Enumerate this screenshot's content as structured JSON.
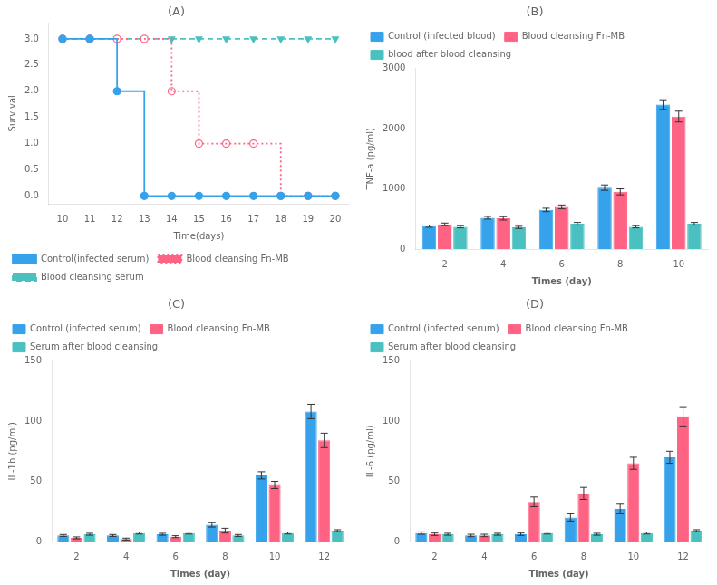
{
  "chart_data": [
    {
      "type": "step",
      "title": "(A)",
      "xlabel": "Time(days)",
      "ylabel": "Survival",
      "xlim": [
        9.5,
        20.5
      ],
      "ylim": [
        -0.15,
        3.3
      ],
      "xticks": [
        10,
        11,
        12,
        13,
        14,
        15,
        16,
        17,
        18,
        19,
        20
      ],
      "yticks": [
        {
          "value": 0,
          "label": "0.0"
        },
        0.5,
        {
          "value": 1,
          "label": "1.0"
        },
        1.5,
        {
          "value": 2,
          "label": "2.0"
        },
        2.5,
        {
          "value": 3,
          "label": "3.0"
        }
      ],
      "grid": false,
      "legend": "lower left",
      "series": [
        {
          "name": "Control(infected serum)",
          "line_style": "solid",
          "marker": "circle",
          "x": [
            10,
            11,
            12,
            12,
            13,
            13,
            20
          ],
          "values": [
            3,
            3,
            3,
            2,
            2,
            0,
            0
          ],
          "marker_x": [
            10,
            11,
            12,
            13,
            14,
            15,
            16,
            17,
            18,
            19,
            20
          ],
          "marker_values": [
            3,
            3,
            2,
            0,
            0,
            0,
            0,
            0,
            0,
            0,
            0
          ]
        },
        {
          "name": "Blood cleansing Fn-MB",
          "line_style": "dotted",
          "marker": "open_circle",
          "x": [
            10,
            11,
            12,
            13,
            14,
            14,
            15,
            15,
            16,
            17,
            18,
            18,
            20
          ],
          "values": [
            3,
            3,
            3,
            3,
            3,
            2,
            2,
            1,
            1,
            1,
            1,
            0,
            0
          ],
          "marker_x": [
            10,
            11,
            12,
            13,
            14,
            15,
            16,
            17,
            18,
            19,
            20
          ],
          "marker_values": [
            3,
            3,
            3,
            3,
            2,
            1,
            1,
            1,
            0,
            0,
            0
          ]
        },
        {
          "name": "Blood cleansing serum",
          "line_style": "dashed",
          "marker": "triangle_down",
          "x": [
            10,
            11,
            12,
            13,
            14,
            15,
            16,
            17,
            18,
            19,
            20
          ],
          "values": [
            3,
            3,
            3,
            3,
            3,
            3,
            3,
            3,
            3,
            3,
            3
          ],
          "marker_x": [
            10,
            11,
            12,
            13,
            14,
            15,
            16,
            17,
            18,
            19,
            20
          ],
          "marker_values": [
            3,
            3,
            3,
            3,
            3,
            3,
            3,
            3,
            3,
            3,
            3
          ]
        }
      ]
    },
    {
      "type": "bar",
      "title": "(B)",
      "xlabel": "Times (day)",
      "ylabel": "TNF-a (pg/ml)",
      "categories": [
        2,
        4,
        6,
        8,
        10
      ],
      "ylim": [
        0,
        3000
      ],
      "yticks": [
        0,
        1000,
        2000,
        3000
      ],
      "grid": false,
      "legend": "upper left",
      "series": [
        {
          "name": "Control (infected blood)",
          "values": [
            380,
            520,
            650,
            1020,
            2400
          ],
          "errors": [
            18,
            22,
            28,
            45,
            80
          ]
        },
        {
          "name": "Blood cleansing Fn-MB",
          "values": [
            410,
            510,
            700,
            950,
            2200
          ],
          "errors": [
            22,
            28,
            32,
            50,
            90
          ]
        },
        {
          "name": "blood after blood cleansing",
          "values": [
            370,
            360,
            420,
            370,
            420
          ],
          "errors": [
            18,
            18,
            22,
            18,
            22
          ]
        }
      ]
    },
    {
      "type": "bar",
      "title": "(C)",
      "xlabel": "Times (day)",
      "ylabel": "IL-1b (pg/ml)",
      "categories": [
        2,
        4,
        6,
        8,
        10,
        12
      ],
      "ylim": [
        0,
        150
      ],
      "yticks": [
        0,
        50,
        100,
        150
      ],
      "grid": false,
      "legend": "upper left",
      "series": [
        {
          "name": "Control (infected serum)",
          "values": [
            5,
            5,
            6,
            14,
            55,
            108
          ],
          "errors": [
            0.8,
            0.8,
            0.8,
            2,
            3,
            6
          ]
        },
        {
          "name": "Blood cleansing Fn-MB",
          "values": [
            3,
            2,
            4,
            9,
            47,
            84
          ],
          "errors": [
            0.8,
            0.8,
            0.8,
            2,
            3,
            6
          ]
        },
        {
          "name": "Serum after blood cleansing",
          "values": [
            6,
            7,
            7,
            5,
            7,
            9
          ],
          "errors": [
            0.8,
            0.8,
            0.8,
            0.8,
            0.8,
            0.8
          ]
        }
      ]
    },
    {
      "type": "bar",
      "title": "(D)",
      "xlabel": "Times (day)",
      "ylabel": "IL-6 (pg/ml)",
      "categories": [
        2,
        4,
        6,
        8,
        10,
        12
      ],
      "ylim": [
        0,
        150
      ],
      "yticks": [
        0,
        50,
        100,
        150
      ],
      "grid": false,
      "legend": "upper left",
      "series": [
        {
          "name": "Control (infected serum)",
          "values": [
            7,
            5,
            6,
            20,
            27,
            70
          ],
          "errors": [
            1,
            1,
            1,
            3,
            4,
            5
          ]
        },
        {
          "name": "Blood cleansing Fn-MB",
          "values": [
            6,
            5,
            33,
            40,
            65,
            104
          ],
          "errors": [
            1,
            1,
            4,
            5,
            5,
            8
          ]
        },
        {
          "name": "Serum after blood cleansing",
          "values": [
            6,
            6,
            7,
            6,
            7,
            9
          ],
          "errors": [
            0.8,
            0.8,
            0.8,
            0.8,
            0.8,
            0.8
          ]
        }
      ]
    }
  ]
}
